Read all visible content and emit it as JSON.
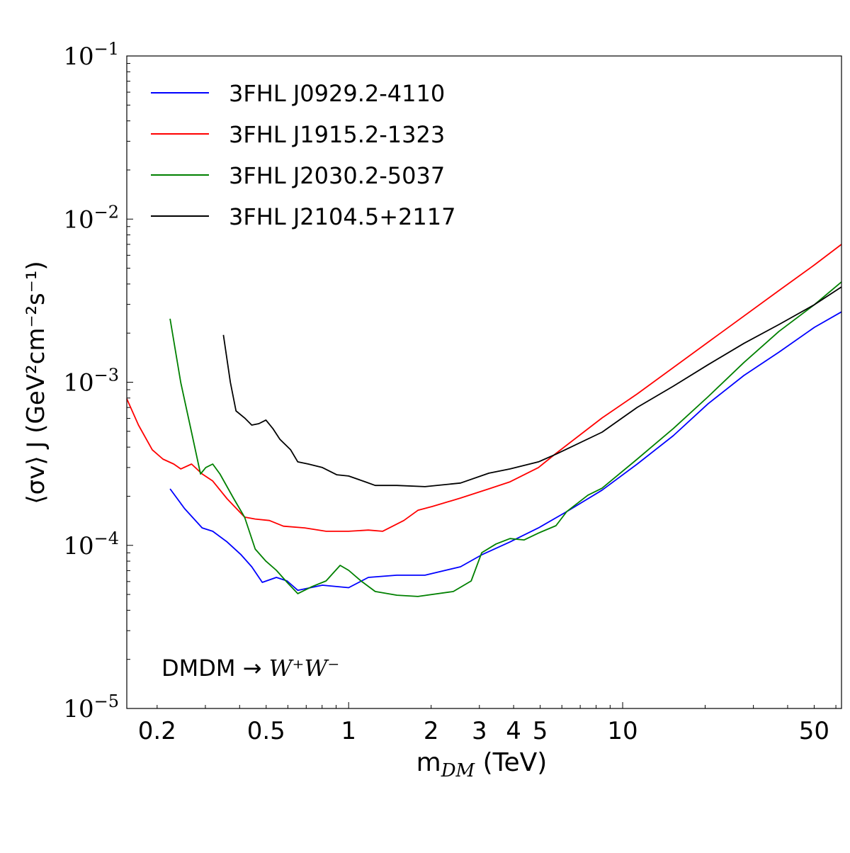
{
  "chart_data": {
    "type": "line",
    "xlabel": {
      "main": "m",
      "sub": "DM",
      "unit": " (TeV)"
    },
    "ylabel": "⟨σv⟩ J (GeV²cm⁻²s⁻¹)",
    "annotation": {
      "text": "DMDM → ",
      "math": "W⁺W⁻"
    },
    "xscale": "log",
    "yscale": "log",
    "xlim": [
      0.155,
      62.9
    ],
    "ylim": [
      1e-05,
      0.1
    ],
    "grid": false,
    "legend_position": "top-left",
    "x_ticks": [
      {
        "value": 0.2,
        "label": "0.2"
      },
      {
        "value": 0.5,
        "label": "0.5"
      },
      {
        "value": 1,
        "label": "1"
      },
      {
        "value": 2,
        "label": "2"
      },
      {
        "value": 3,
        "label": "3"
      },
      {
        "value": 4,
        "label": "4"
      },
      {
        "value": 5,
        "label": "5"
      },
      {
        "value": 10,
        "label": "10"
      },
      {
        "value": 50,
        "label": "50"
      }
    ],
    "y_ticks": [
      {
        "value": 0.1,
        "base": "10",
        "exp": "−1"
      },
      {
        "value": 0.01,
        "base": "10",
        "exp": "−2"
      },
      {
        "value": 0.001,
        "base": "10",
        "exp": "−3"
      },
      {
        "value": 0.0001,
        "base": "10",
        "exp": "−4"
      },
      {
        "value": 1e-05,
        "base": "10",
        "exp": "−5"
      }
    ],
    "series": [
      {
        "name": "3FHL J0929.2-4110",
        "color": "#0000ff",
        "x": [
          0.223,
          0.252,
          0.292,
          0.319,
          0.36,
          0.405,
          0.443,
          0.484,
          0.545,
          0.596,
          0.652,
          0.802,
          1.0,
          1.18,
          1.5,
          1.9,
          2.56,
          3.06,
          3.88,
          4.93,
          6.25,
          8.41,
          11.3,
          15.3,
          20.5,
          27.7,
          37.2,
          50.1,
          62.9
        ],
        "y": [
          0.000222,
          0.000168,
          0.000128,
          0.000122,
          0.000105,
          8.75e-05,
          7.39e-05,
          5.93e-05,
          6.36e-05,
          6.05e-05,
          5.3e-05,
          5.7e-05,
          5.5e-05,
          6.36e-05,
          6.56e-05,
          6.56e-05,
          7.39e-05,
          8.75e-05,
          0.000105,
          0.000128,
          0.000161,
          0.000218,
          0.000315,
          0.00047,
          0.000738,
          0.0011,
          0.00153,
          0.00217,
          0.0027
        ]
      },
      {
        "name": "3FHL J1915.2-1323",
        "color": "#ff0000",
        "x": [
          0.155,
          0.171,
          0.192,
          0.21,
          0.23,
          0.244,
          0.267,
          0.292,
          0.319,
          0.36,
          0.417,
          0.456,
          0.514,
          0.578,
          0.691,
          0.827,
          1.0,
          1.18,
          1.33,
          1.59,
          1.79,
          2.02,
          2.56,
          3.25,
          3.88,
          4.93,
          5.71,
          8.41,
          11.3,
          20.5,
          37.2,
          50.1,
          62.9
        ],
        "y": [
          0.000791,
          0.000546,
          0.000385,
          0.000338,
          0.000315,
          0.000294,
          0.000315,
          0.000274,
          0.000248,
          0.000193,
          0.000149,
          0.000145,
          0.000142,
          0.000131,
          0.000128,
          0.000122,
          0.000122,
          0.000124,
          0.000122,
          0.000142,
          0.000164,
          0.000173,
          0.000195,
          0.000222,
          0.000245,
          0.0003,
          0.000366,
          0.000604,
          0.000848,
          0.00176,
          0.00365,
          0.00524,
          0.007
        ]
      },
      {
        "name": "3FHL J2030.2-5037",
        "color": "#008000",
        "x": [
          0.223,
          0.244,
          0.267,
          0.288,
          0.301,
          0.319,
          0.339,
          0.381,
          0.417,
          0.456,
          0.499,
          0.545,
          0.596,
          0.652,
          0.734,
          0.827,
          0.931,
          1.0,
          1.11,
          1.25,
          1.5,
          1.79,
          2.41,
          2.8,
          3.06,
          3.45,
          3.88,
          4.37,
          4.93,
          5.71,
          6.25,
          7.47,
          8.41,
          11.3,
          15.3,
          20.5,
          27.7,
          37.2,
          50.1,
          62.9
        ],
        "y": [
          0.00245,
          0.000995,
          0.000494,
          0.000274,
          0.0003,
          0.000315,
          0.000274,
          0.000193,
          0.000149,
          9.49e-05,
          8e-05,
          7.03e-05,
          5.93e-05,
          5.06e-05,
          5.58e-05,
          6.05e-05,
          7.54e-05,
          7.03e-05,
          6.05e-05,
          5.21e-05,
          4.95e-05,
          4.86e-05,
          5.21e-05,
          6.05e-05,
          9.02e-05,
          0.000102,
          0.00011,
          0.000108,
          0.000119,
          0.000132,
          0.000161,
          0.000203,
          0.000224,
          0.000338,
          0.00052,
          0.000815,
          0.00132,
          0.00205,
          0.00299,
          0.00412
        ]
      },
      {
        "name": "3FHL J2104.5+2117",
        "color": "#000000",
        "x": [
          0.349,
          0.37,
          0.388,
          0.417,
          0.443,
          0.47,
          0.499,
          0.529,
          0.561,
          0.614,
          0.652,
          0.713,
          0.802,
          0.904,
          1.0,
          1.15,
          1.25,
          1.5,
          1.9,
          2.56,
          3.25,
          3.88,
          4.93,
          5.71,
          8.41,
          11.3,
          15.3,
          20.5,
          27.7,
          37.2,
          50.1,
          62.9
        ],
        "y": [
          0.00195,
          0.001,
          0.000667,
          0.000604,
          0.000546,
          0.000557,
          0.000586,
          0.00052,
          0.000447,
          0.000385,
          0.000325,
          0.000315,
          0.0003,
          0.000271,
          0.000266,
          0.000245,
          0.000233,
          0.000233,
          0.000229,
          0.000241,
          0.000277,
          0.000294,
          0.000325,
          0.000362,
          0.000494,
          0.000701,
          0.000946,
          0.00128,
          0.00173,
          0.00226,
          0.00299,
          0.00384
        ]
      }
    ]
  }
}
